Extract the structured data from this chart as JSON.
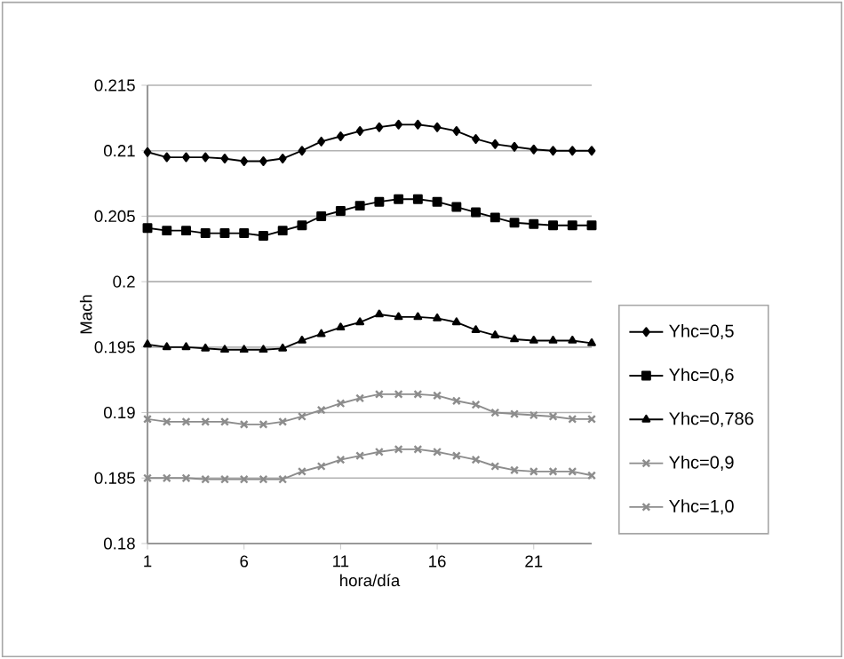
{
  "chart_data": {
    "type": "line",
    "xlabel": "hora/día",
    "ylabel": "Mach",
    "x": [
      1,
      2,
      3,
      4,
      5,
      6,
      7,
      8,
      9,
      10,
      11,
      12,
      13,
      14,
      15,
      16,
      17,
      18,
      19,
      20,
      21,
      22,
      23,
      24
    ],
    "xlim": [
      1,
      24
    ],
    "xticks": [
      1,
      6,
      11,
      16,
      21
    ],
    "ylim": [
      0.18,
      0.215
    ],
    "yticks": [
      0.18,
      0.185,
      0.19,
      0.195,
      0.2,
      0.205,
      0.21,
      0.215
    ],
    "grid": "y",
    "legend": "right",
    "line_style": "solid",
    "series": [
      {
        "name": "Yhc=0,5",
        "color": "#000000",
        "marker": "diamond",
        "values": [
          0.2099,
          0.2095,
          0.2095,
          0.2095,
          0.2094,
          0.2092,
          0.2092,
          0.2094,
          0.21,
          0.2107,
          0.2111,
          0.2115,
          0.2118,
          0.212,
          0.212,
          0.2118,
          0.2115,
          0.2109,
          0.2105,
          0.2103,
          0.2101,
          0.21,
          0.21,
          0.21
        ]
      },
      {
        "name": "Yhc=0,6",
        "color": "#000000",
        "marker": "square",
        "values": [
          0.2041,
          0.2039,
          0.2039,
          0.2037,
          0.2037,
          0.2037,
          0.2035,
          0.2039,
          0.2043,
          0.205,
          0.2054,
          0.2058,
          0.2061,
          0.2063,
          0.2063,
          0.2061,
          0.2057,
          0.2053,
          0.2049,
          0.2045,
          0.2044,
          0.2043,
          0.2043,
          0.2043
        ]
      },
      {
        "name": "Yhc=0,786",
        "color": "#000000",
        "marker": "triangle",
        "values": [
          0.1952,
          0.195,
          0.195,
          0.1949,
          0.1948,
          0.1948,
          0.1948,
          0.1949,
          0.1955,
          0.196,
          0.1965,
          0.1969,
          0.1975,
          0.1973,
          0.1973,
          0.1972,
          0.1969,
          0.1963,
          0.1959,
          0.1956,
          0.1955,
          0.1955,
          0.1955,
          0.1953
        ]
      },
      {
        "name": "Yhc=0,9",
        "color": "#8c8c8c",
        "marker": "cross",
        "values": [
          0.1895,
          0.1893,
          0.1893,
          0.1893,
          0.1893,
          0.1891,
          0.1891,
          0.1893,
          0.1897,
          0.1902,
          0.1907,
          0.1911,
          0.1914,
          0.1914,
          0.1914,
          0.1913,
          0.1909,
          0.1906,
          0.19,
          0.1899,
          0.1898,
          0.1897,
          0.1895,
          0.1895
        ]
      },
      {
        "name": "Yhc=1,0",
        "color": "#8c8c8c",
        "marker": "cross",
        "values": [
          0.185,
          0.185,
          0.185,
          0.1849,
          0.1849,
          0.1849,
          0.1849,
          0.1849,
          0.1855,
          0.1859,
          0.1864,
          0.1867,
          0.187,
          0.1872,
          0.1872,
          0.187,
          0.1867,
          0.1864,
          0.1859,
          0.1856,
          0.1855,
          0.1855,
          0.1855,
          0.1852
        ]
      }
    ]
  }
}
